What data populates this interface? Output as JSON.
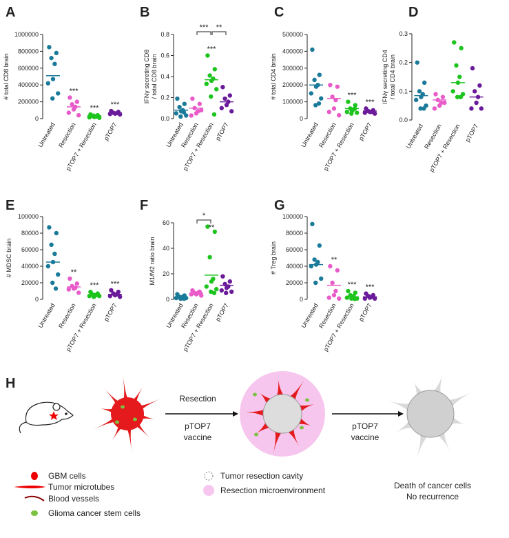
{
  "chart_data": [
    {
      "type": "strip",
      "panel": "A",
      "ylabel": [
        "# total CD8 brain"
      ],
      "categories": [
        "Untreated",
        "Resection",
        "pTOP7 + Resection",
        "pTOP7"
      ],
      "colors": [
        "#1a7a99",
        "#e85bc9",
        "#1dc41d",
        "#6a1b9a"
      ],
      "values": [
        [
          850000,
          780000,
          720000,
          650000,
          470000,
          420000,
          300000,
          240000
        ],
        [
          250000,
          200000,
          170000,
          140000,
          110000,
          70000,
          40000
        ],
        [
          50000,
          40000,
          30000,
          25000,
          20000,
          15000,
          10000,
          35000
        ],
        [
          90000,
          80000,
          70000,
          65000,
          60000,
          55000,
          50000
        ]
      ],
      "means": [
        510000,
        140000,
        35000,
        70000
      ],
      "stars": [
        null,
        "***",
        "***",
        "***"
      ],
      "ylim": [
        0,
        1000000
      ],
      "yticks": [
        0,
        200000,
        400000,
        600000,
        800000,
        1000000
      ]
    },
    {
      "type": "strip",
      "panel": "B",
      "ylabel": [
        "IFNγ secreting CD8",
        "/ total CD8 brain"
      ],
      "categories": [
        "Untreated",
        "Resection",
        "pTOP7 + Resection",
        "pTOP7"
      ],
      "colors": [
        "#1a7a99",
        "#e85bc9",
        "#1dc41d",
        "#6a1b9a"
      ],
      "values": [
        [
          0.19,
          0.14,
          0.11,
          0.08,
          0.07,
          0.05,
          0.03,
          0.02,
          0.06
        ],
        [
          0.19,
          0.14,
          0.1,
          0.07,
          0.05,
          0.03,
          0.08
        ],
        [
          0.6,
          0.47,
          0.41,
          0.38,
          0.36,
          0.33,
          0.28,
          0.21,
          0.04
        ],
        [
          0.3,
          0.22,
          0.19,
          0.16,
          0.13,
          0.1,
          0.07
        ]
      ],
      "means": [
        0.08,
        0.1,
        0.37,
        0.16
      ],
      "stars": [
        null,
        null,
        "***",
        null
      ],
      "brackets": [
        {
          "from": 1,
          "to": 2,
          "label": "***"
        },
        {
          "from": 2,
          "to": 3,
          "label": "**"
        }
      ],
      "ylim": [
        0,
        0.8
      ],
      "yticks": [
        {
          "value": 0,
          "label": "0.0"
        },
        0.2,
        0.4,
        0.6,
        0.8
      ]
    },
    {
      "type": "strip",
      "panel": "C",
      "ylabel": [
        "# total CD4 brain"
      ],
      "categories": [
        "Untreated",
        "Resection",
        "pTOP7 + Resection",
        "pTOP7"
      ],
      "colors": [
        "#1a7a99",
        "#e85bc9",
        "#1dc41d",
        "#6a1b9a"
      ],
      "values": [
        [
          410000,
          260000,
          230000,
          200000,
          190000,
          150000,
          120000,
          80000,
          90000
        ],
        [
          200000,
          190000,
          130000,
          110000,
          60000,
          40000,
          20000
        ],
        [
          100000,
          80000,
          60000,
          55000,
          45000,
          40000,
          35000,
          30000,
          60000
        ],
        [
          60000,
          50000,
          45000,
          40000,
          40000,
          35000,
          30000
        ]
      ],
      "means": [
        200000,
        120000,
        60000,
        45000
      ],
      "stars": [
        null,
        null,
        "***",
        "***"
      ],
      "ylim": [
        0,
        500000
      ],
      "yticks": [
        0,
        100000,
        200000,
        300000,
        400000,
        500000
      ]
    },
    {
      "type": "strip",
      "panel": "D",
      "ylabel": [
        "IFNγ secreting CD4",
        "/ total CD4 brain"
      ],
      "categories": [
        "Untreated",
        "Resection",
        "pTOP7 + Resection",
        "pTOP7"
      ],
      "colors": [
        "#1a7a99",
        "#e85bc9",
        "#1dc41d",
        "#6a1b9a"
      ],
      "values": [
        [
          0.2,
          0.13,
          0.1,
          0.09,
          0.08,
          0.07,
          0.05,
          0.04,
          0.04
        ],
        [
          0.09,
          0.08,
          0.07,
          0.06,
          0.05,
          0.04,
          0.06
        ],
        [
          0.27,
          0.25,
          0.19,
          0.15,
          0.13,
          0.1,
          0.09,
          0.08,
          0.08
        ],
        [
          0.18,
          0.12,
          0.1,
          0.08,
          0.06,
          0.04,
          0.04
        ]
      ],
      "means": [
        0.085,
        0.07,
        0.13,
        0.08
      ],
      "ylim": [
        0,
        0.3
      ],
      "yticks": [
        {
          "value": 0,
          "label": "0.0"
        },
        0.1,
        0.2,
        0.3
      ]
    },
    {
      "type": "strip",
      "panel": "E",
      "ylabel": [
        "# MDSC brain"
      ],
      "categories": [
        "Untreated",
        "Resection",
        "pTOP7 + Resection",
        "pTOP7"
      ],
      "colors": [
        "#1a7a99",
        "#e85bc9",
        "#1dc41d",
        "#6a1b9a"
      ],
      "values": [
        [
          87000,
          80000,
          66000,
          55000,
          45000,
          40000,
          30000,
          20000,
          13000
        ],
        [
          25000,
          19000,
          16000,
          14000,
          13000,
          12000,
          8000
        ],
        [
          9000,
          7000,
          6000,
          5000,
          5000,
          4000,
          4000,
          3000
        ],
        [
          11000,
          9000,
          7000,
          6000,
          5000,
          4000,
          3000
        ]
      ],
      "means": [
        45000,
        15000,
        5000,
        6000
      ],
      "stars": [
        null,
        "**",
        "***",
        "***"
      ],
      "ylim": [
        0,
        100000
      ],
      "yticks": [
        0,
        20000,
        40000,
        60000,
        80000,
        100000
      ]
    },
    {
      "type": "strip",
      "panel": "F",
      "ylabel": [
        "M1/M2 ratio brain"
      ],
      "categories": [
        "Untreated",
        "Resection",
        "pTOP7 + Resection",
        "pTOP7"
      ],
      "colors": [
        "#1a7a99",
        "#e85bc9",
        "#1dc41d",
        "#6a1b9a"
      ],
      "values": [
        [
          4,
          3,
          2,
          2,
          1,
          1,
          1,
          0.5,
          0.5
        ],
        [
          7,
          6,
          5,
          5,
          4,
          4,
          3
        ],
        [
          57,
          53,
          33,
          16,
          14,
          10,
          8,
          6,
          5
        ],
        [
          18,
          14,
          12,
          10,
          9,
          7,
          6,
          5
        ]
      ],
      "means": [
        1.5,
        5,
        19,
        11
      ],
      "stars": [
        null,
        null,
        "**",
        null
      ],
      "brackets": [
        {
          "from": 1,
          "to": 2,
          "label": "*"
        }
      ],
      "ylim": [
        0,
        60
      ],
      "yticks": [
        0,
        20,
        40,
        60
      ]
    },
    {
      "type": "strip",
      "panel": "G",
      "ylabel": [
        "# Treg brain"
      ],
      "categories": [
        "Untreated",
        "Resection",
        "pTOP7 + Resection",
        "pTOP7"
      ],
      "colors": [
        "#1a7a99",
        "#e85bc9",
        "#1dc41d",
        "#6a1b9a"
      ],
      "values": [
        [
          91000,
          65000,
          48000,
          45000,
          42000,
          40000,
          25000,
          20000
        ],
        [
          40000,
          35000,
          20000,
          10000,
          5000,
          2000,
          1000
        ],
        [
          10000,
          8000,
          5000,
          4000,
          3000,
          2000,
          1000,
          1000,
          500
        ],
        [
          7000,
          5000,
          4000,
          3000,
          2000,
          1000,
          1000
        ]
      ],
      "means": [
        42000,
        17000,
        3000,
        3000
      ],
      "stars": [
        null,
        "**",
        "***",
        "***"
      ],
      "ylim": [
        0,
        100000
      ],
      "yticks": [
        0,
        20000,
        40000,
        60000,
        80000,
        100000
      ]
    }
  ],
  "diagram": {
    "panel": "H",
    "step1": {
      "above": "Resection",
      "below": [
        "pTOP7",
        "vaccine"
      ]
    },
    "step2": {
      "below": [
        "pTOP7",
        "vaccine"
      ]
    },
    "outcome": [
      "Death of cancer cells",
      "No recurrence"
    ],
    "legend_left": [
      "GBM cells",
      "Tumor microtubes",
      "Blood vessels",
      "Glioma cancer stem cells"
    ],
    "legend_right": [
      "Tumor resection cavity",
      "Resection microenvironment"
    ]
  }
}
